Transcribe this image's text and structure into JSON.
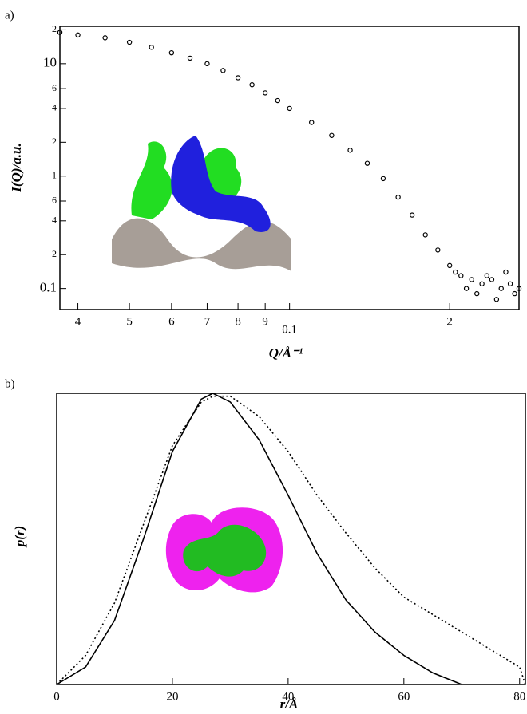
{
  "chart_data": [
    {
      "type": "scatter",
      "panel": "a)",
      "xlabel": "Q/Å⁻¹",
      "ylabel": "I(Q)/a.u.",
      "xscale": "log",
      "yscale": "log",
      "color": "#000000",
      "x": [
        0.037,
        0.04,
        0.045,
        0.05,
        0.055,
        0.06,
        0.065,
        0.07,
        0.075,
        0.08,
        0.085,
        0.09,
        0.095,
        0.1,
        0.11,
        0.12,
        0.13,
        0.14,
        0.15,
        0.16,
        0.17,
        0.18,
        0.19,
        0.2,
        0.205,
        0.21,
        0.215,
        0.22,
        0.225,
        0.23,
        0.235,
        0.24,
        0.245,
        0.25,
        0.255,
        0.26,
        0.265,
        0.27
      ],
      "values": [
        19,
        18,
        17,
        15.5,
        14,
        12.5,
        11.2,
        10,
        8.7,
        7.5,
        6.5,
        5.5,
        4.7,
        4,
        3,
        2.3,
        1.7,
        1.3,
        0.95,
        0.65,
        0.45,
        0.3,
        0.22,
        0.16,
        0.14,
        0.13,
        0.1,
        0.12,
        0.09,
        0.11,
        0.13,
        0.12,
        0.08,
        0.1,
        0.14,
        0.11,
        0.09,
        0.1
      ],
      "xlim": [
        0.037,
        0.27
      ],
      "ylim": [
        0.065,
        21.5
      ],
      "xticks": [
        {
          "value": 0.04,
          "label": "4"
        },
        {
          "value": 0.05,
          "label": "5"
        },
        {
          "value": 0.06,
          "label": "6"
        },
        {
          "value": 0.07,
          "label": "7"
        },
        {
          "value": 0.08,
          "label": "8"
        },
        {
          "value": 0.09,
          "label": "9"
        },
        0.1,
        {
          "value": 0.2,
          "label": "2"
        }
      ],
      "yticks": [
        {
          "value": 20,
          "label": "2"
        },
        10,
        6,
        4,
        2,
        1,
        {
          "value": 0.6,
          "label": "6"
        },
        {
          "value": 0.4,
          "label": "4"
        },
        {
          "value": 0.2,
          "label": "2"
        },
        0.1
      ]
    },
    {
      "type": "line",
      "panel": "b)",
      "xlabel": "r/Å",
      "ylabel": "p(r)",
      "x": [
        0,
        5,
        10,
        15,
        20,
        25,
        27,
        30,
        35,
        40,
        45,
        50,
        55,
        60,
        65,
        70,
        75,
        80,
        81
      ],
      "series": [
        {
          "color": "#000000",
          "dash": "solid",
          "values": [
            0,
            0.06,
            0.22,
            0.5,
            0.8,
            0.98,
            1,
            0.97,
            0.84,
            0.65,
            0.45,
            0.29,
            0.18,
            0.1,
            0.04,
            0,
            null,
            null,
            null
          ]
        },
        {
          "color": "#000000",
          "dash": "dotted",
          "values": [
            0,
            0.1,
            0.28,
            0.55,
            0.82,
            0.97,
            0.99,
            0.99,
            0.92,
            0.8,
            0.65,
            0.52,
            0.4,
            0.3,
            0.24,
            0.18,
            0.12,
            0.06,
            0
          ]
        }
      ],
      "xlim": [
        0,
        81
      ],
      "ylim": [
        0,
        1
      ],
      "xticks": [
        0,
        20,
        40,
        60,
        80
      ]
    }
  ]
}
